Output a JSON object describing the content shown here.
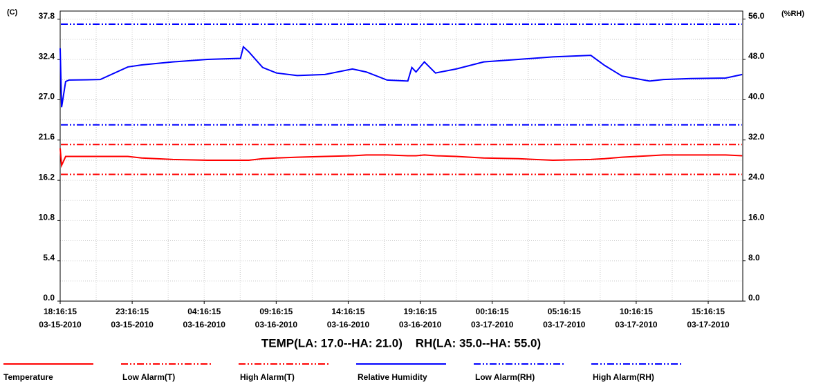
{
  "chart_data": {
    "type": "line",
    "title": "TEMP(LA: 17.0--HA: 21.0)    RH(LA: 35.0--HA: 55.0)",
    "ylabel": "(C)",
    "y2label": "(%RH)",
    "grid": true,
    "xlim": [
      0,
      47.4
    ],
    "xticks": [
      {
        "value": 0,
        "label": [
          "18:16:15",
          "03-15-2010"
        ]
      },
      {
        "value": 5,
        "label": [
          "23:16:15",
          "03-15-2010"
        ]
      },
      {
        "value": 10,
        "label": [
          "04:16:15",
          "03-16-2010"
        ]
      },
      {
        "value": 15,
        "label": [
          "09:16:15",
          "03-16-2010"
        ]
      },
      {
        "value": 20,
        "label": [
          "14:16:15",
          "03-16-2010"
        ]
      },
      {
        "value": 25,
        "label": [
          "19:16:15",
          "03-16-2010"
        ]
      },
      {
        "value": 30,
        "label": [
          "00:16:15",
          "03-17-2010"
        ]
      },
      {
        "value": 35,
        "label": [
          "05:16:15",
          "03-17-2010"
        ]
      },
      {
        "value": 40,
        "label": [
          "10:16:15",
          "03-17-2010"
        ]
      },
      {
        "value": 45,
        "label": [
          "15:16:15",
          "03-17-2010"
        ]
      }
    ],
    "ylim": [
      0,
      38.9
    ],
    "yticks": [
      {
        "value": 0,
        "label": "0.0"
      },
      5.4,
      10.8,
      16.2,
      21.6,
      {
        "value": 27,
        "label": "27.0"
      },
      32.4,
      37.8
    ],
    "y2lim": [
      0,
      57.6
    ],
    "y2ticks": [
      {
        "value": 0,
        "label": "0.0"
      },
      {
        "value": 8,
        "label": "8.0"
      },
      {
        "value": 16,
        "label": "16.0"
      },
      {
        "value": 24,
        "label": "24.0"
      },
      {
        "value": 32,
        "label": "32.0"
      },
      {
        "value": 40,
        "label": "40.0"
      },
      {
        "value": 48,
        "label": "48.0"
      },
      {
        "value": 56,
        "label": "56.0"
      }
    ],
    "x": [
      0,
      0.1,
      0.38,
      0.62,
      2.78,
      4.7,
      5.66,
      7.82,
      10.22,
      12.52,
      12.72,
      13.1,
      14.06,
      15.02,
      16.46,
      18.38,
      20.3,
      21.26,
      22.7,
      24.14,
      24.42,
      24.71,
      25.29,
      26.06,
      27.5,
      29.41,
      31.81,
      34.21,
      36.85,
      37.81,
      39.01,
      40.93,
      41.89,
      43.81,
      46.21,
      47.36
    ],
    "series": [
      {
        "name": "Temperature",
        "color": "#ff0000",
        "axis": "y",
        "values": [
          20.5,
          18.2,
          19.4,
          19.4,
          19.4,
          19.4,
          19.2,
          19.0,
          18.9,
          18.9,
          18.9,
          18.9,
          19.1,
          19.2,
          19.3,
          19.4,
          19.5,
          19.6,
          19.6,
          19.5,
          19.5,
          19.5,
          19.6,
          19.5,
          19.4,
          19.2,
          19.1,
          18.9,
          19.0,
          19.1,
          19.3,
          19.5,
          19.6,
          19.6,
          19.6,
          19.5
        ]
      },
      {
        "name": "Low Alarm(T)",
        "color": "#ff0000",
        "axis": "y",
        "dash": "dashdotdot",
        "level": 17.0
      },
      {
        "name": "High Alarm(T)",
        "color": "#ff0000",
        "axis": "y",
        "dash": "dashdotdot",
        "level": 21.0
      },
      {
        "name": "Relative Humidity",
        "color": "#0000ff",
        "axis": "y2",
        "values": [
          50.2,
          38.5,
          43.6,
          43.9,
          44.0,
          46.5,
          46.9,
          47.5,
          48.0,
          48.2,
          50.5,
          49.5,
          46.4,
          45.3,
          44.8,
          45.0,
          46.1,
          45.5,
          43.9,
          43.7,
          46.4,
          45.5,
          47.5,
          45.3,
          46.1,
          47.5,
          48.0,
          48.5,
          48.8,
          46.8,
          44.7,
          43.7,
          44.0,
          44.2,
          44.3,
          45.0
        ]
      },
      {
        "name": "Low Alarm(RH)",
        "color": "#0000ff",
        "axis": "y2",
        "dash": "dashdotdot",
        "level": 35.0
      },
      {
        "name": "High Alarm(RH)",
        "color": "#0000ff",
        "axis": "y2",
        "dash": "dashdotdot",
        "level": 55.0
      }
    ]
  }
}
